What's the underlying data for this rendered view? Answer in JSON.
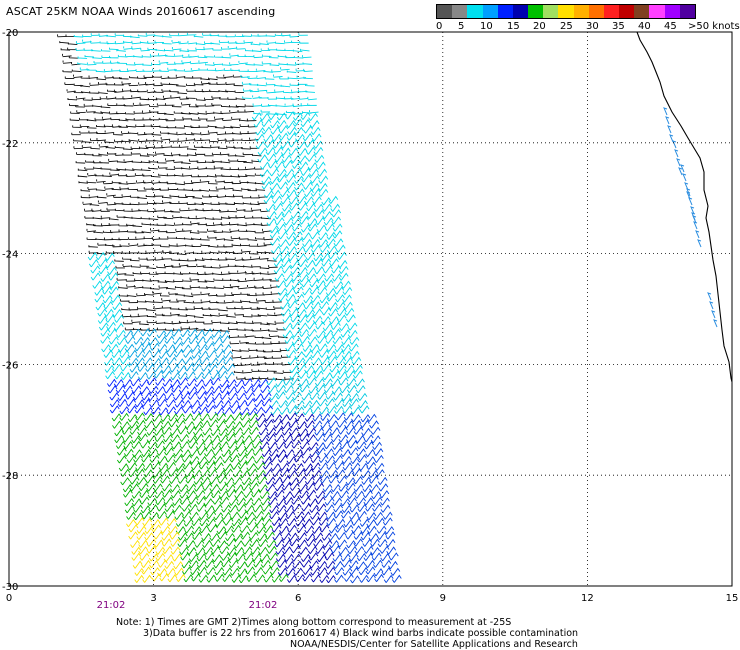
{
  "title": "ASCAT 25KM NOAA Winds 20160617 ascending",
  "legend": {
    "colors": [
      "#555555",
      "#888888",
      "#00e0f0",
      "#00a0ff",
      "#0020ff",
      "#0000b0",
      "#00c000",
      "#a0e060",
      "#ffe000",
      "#ffb000",
      "#ff7000",
      "#ff2020",
      "#c00000",
      "#804020",
      "#ff40ff",
      "#a000ff",
      "#5000a0"
    ],
    "labels": [
      "0",
      "5",
      "10",
      "15",
      "20",
      "25",
      "30",
      "35",
      "40",
      "45",
      ">50 knots"
    ],
    "unit": "knots"
  },
  "map": {
    "lat_ticks": [
      "-20",
      "-22",
      "-24",
      "-26",
      "-28",
      "-30"
    ],
    "lon_ticks": [
      "0",
      "3",
      "6",
      "9",
      "12",
      "15"
    ],
    "time_labels": [
      "21:02",
      "21:02"
    ],
    "time_color": "#800080"
  },
  "notes": [
    "Note:  1) Times are GMT 2)Times along bottom correspond to measurement at -25S",
    "3)Data buffer is 22 hrs from 20160617 4) Black wind barbs indicate possible contamination",
    "NOAA/NESDIS/Center for Satellite Applications and Research"
  ]
}
